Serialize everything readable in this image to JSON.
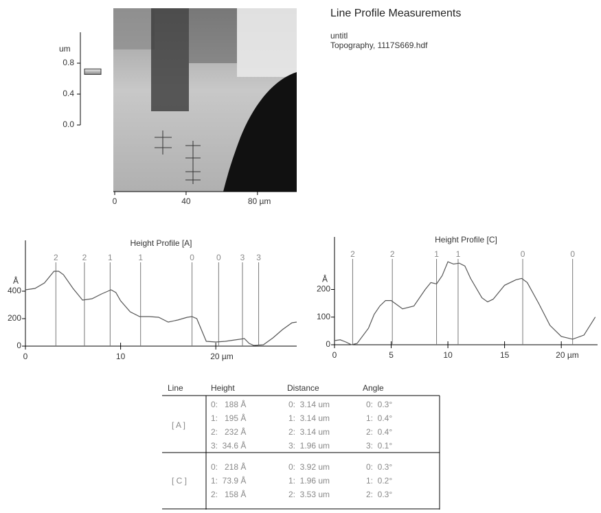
{
  "header": {
    "title": "Line Profile Measurements",
    "subtitle": "untitl",
    "file": "Topography,  1117S669.hdf"
  },
  "scale_bar": {
    "unit": "um",
    "ylim": [
      0,
      1.2
    ],
    "yticks": [
      {
        "value": 0.8,
        "label": "0.8"
      },
      {
        "value": 0.4,
        "label": "0.4"
      },
      {
        "value": 0,
        "label": "0.0"
      }
    ],
    "indicator": 0.69
  },
  "image": {
    "xlim": [
      0,
      102
    ],
    "xticks": [
      0,
      40,
      {
        "value": 80,
        "label": "80 µm"
      }
    ]
  },
  "chart_data": [
    {
      "type": "line",
      "title": "Height Profile [A]",
      "y_label": "Å",
      "color": "#555555",
      "x": [
        0,
        1,
        2,
        3,
        3.5,
        4,
        5,
        6,
        7,
        8,
        9,
        9.5,
        10,
        11,
        12,
        13,
        14,
        15,
        16,
        17,
        17.5,
        18,
        19,
        20,
        21,
        22,
        23,
        23.5,
        24,
        25,
        26,
        27,
        28,
        28.5
      ],
      "values": [
        410,
        420,
        460,
        545,
        545,
        520,
        420,
        335,
        345,
        380,
        410,
        390,
        330,
        250,
        215,
        215,
        210,
        175,
        190,
        210,
        215,
        200,
        35,
        30,
        35,
        45,
        55,
        20,
        5,
        10,
        60,
        120,
        170,
        175
      ],
      "xlim": [
        0,
        28.5
      ],
      "ylim": [
        0,
        770
      ],
      "xticks": [
        0,
        10,
        {
          "value": 20,
          "label": "20 µm"
        }
      ],
      "yticks": [
        0,
        200,
        400
      ],
      "markers_x": [
        3.2,
        6.2,
        8.9,
        12.1,
        17.5,
        20.3,
        22.8,
        24.5
      ],
      "marker_labels": [
        2,
        2,
        1,
        1,
        0,
        0,
        3,
        3
      ]
    },
    {
      "type": "line",
      "title": "Height Profile [C]",
      "y_label": "Å",
      "color": "#555555",
      "x": [
        0,
        0.5,
        1,
        1.5,
        2,
        3,
        3.5,
        4,
        4.5,
        5,
        6,
        7,
        8,
        8.5,
        9,
        9.5,
        10,
        10.5,
        11,
        11.5,
        12,
        13,
        13.5,
        14,
        15,
        16,
        16.5,
        17,
        18,
        19,
        20,
        21,
        22,
        23
      ],
      "values": [
        15,
        18,
        10,
        0,
        5,
        60,
        110,
        140,
        160,
        160,
        130,
        140,
        200,
        225,
        220,
        250,
        300,
        292,
        295,
        285,
        240,
        170,
        155,
        165,
        215,
        235,
        240,
        225,
        150,
        70,
        30,
        20,
        35,
        100
      ],
      "xlim": [
        0,
        23.2
      ],
      "ylim": [
        0,
        390
      ],
      "xticks": [
        0,
        5,
        10,
        15,
        {
          "value": 20,
          "label": "20 µm"
        }
      ],
      "yticks": [
        0,
        100,
        200
      ],
      "markers_x": [
        1.6,
        5.1,
        9.0,
        10.9,
        16.6,
        21.0
      ],
      "marker_labels": [
        2,
        2,
        1,
        1,
        0,
        0
      ]
    }
  ],
  "table": {
    "columns": [
      "Line",
      "Height",
      "Distance",
      "Angle"
    ],
    "groups": [
      {
        "line": "[ A ]",
        "rows": [
          [
            "0:   188 Å",
            "0:  3.14 um",
            "0:  0.3°"
          ],
          [
            "1:   195 Å",
            "1:  3.14 um",
            "1:  0.4°"
          ],
          [
            "2:   232 Å",
            "2:  3.14 um",
            "2:  0.4°"
          ],
          [
            "3:  34.6 Å",
            "3:  1.96 um",
            "3:  0.1°"
          ]
        ]
      },
      {
        "line": "[ C ]",
        "rows": [
          [
            "0:   218 Å",
            "0:  3.92 um",
            "0:  0.3°"
          ],
          [
            "1:  73.9 Å",
            "1:  1.96 um",
            "1:  0.2°"
          ],
          [
            "2:   158 Å",
            "2:  3.53 um",
            "2:  0.3°"
          ]
        ]
      }
    ]
  }
}
